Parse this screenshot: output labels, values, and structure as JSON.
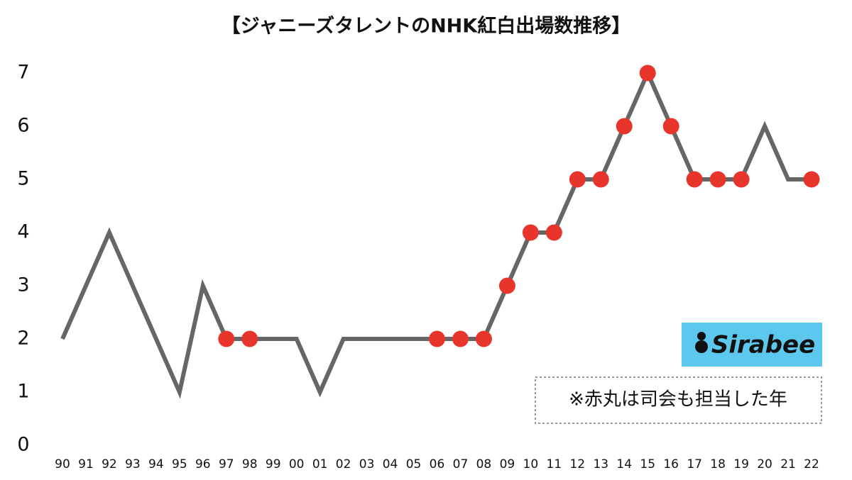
{
  "chart_data": {
    "type": "line",
    "title": "【ジャニーズタレントのNHK紅白出場数推移】",
    "categories": [
      "90",
      "91",
      "92",
      "93",
      "94",
      "95",
      "96",
      "97",
      "98",
      "99",
      "00",
      "01",
      "02",
      "03",
      "04",
      "05",
      "06",
      "07",
      "08",
      "09",
      "10",
      "11",
      "12",
      "13",
      "14",
      "15",
      "16",
      "17",
      "18",
      "19",
      "20",
      "21",
      "22"
    ],
    "values": [
      2,
      3,
      4,
      3,
      2,
      1,
      3,
      2,
      2,
      2,
      2,
      1,
      2,
      2,
      2,
      2,
      2,
      2,
      2,
      3,
      4,
      4,
      5,
      5,
      6,
      7,
      6,
      5,
      5,
      5,
      6,
      5,
      5
    ],
    "color": "#666666",
    "markers": [
      false,
      false,
      false,
      false,
      false,
      false,
      false,
      true,
      true,
      false,
      false,
      false,
      false,
      false,
      false,
      false,
      true,
      true,
      true,
      true,
      true,
      true,
      true,
      true,
      true,
      true,
      true,
      true,
      true,
      true,
      false,
      false,
      true
    ],
    "marker_color": "#e8352b",
    "ylim": [
      0,
      7
    ],
    "yticks": [
      0,
      1,
      2,
      3,
      4,
      5,
      6,
      7
    ],
    "grid": false,
    "note": "※赤丸は司会も担当した年",
    "logo": "Sirabee",
    "logo_color": "#5cc8ee"
  }
}
